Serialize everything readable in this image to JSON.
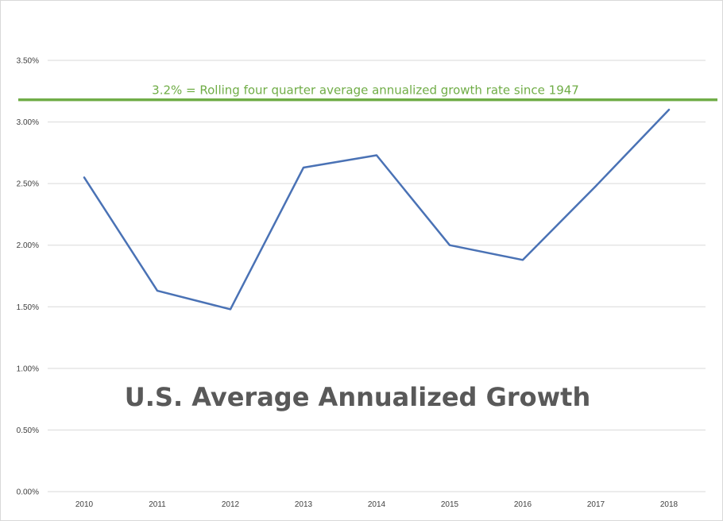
{
  "chart_data": {
    "type": "line",
    "title": "U.S. Average Annualized Growth",
    "xlabel": "",
    "ylabel": "",
    "categories": [
      "2010",
      "2011",
      "2012",
      "2013",
      "2014",
      "2015",
      "2016",
      "2017",
      "2018"
    ],
    "series": [
      {
        "name": "",
        "values": [
          2.55,
          1.63,
          1.48,
          2.63,
          2.73,
          2.0,
          1.88,
          2.48,
          3.1
        ]
      }
    ],
    "ylim": [
      0,
      3.5
    ],
    "yticks": [
      0,
      0.5,
      1.0,
      1.5,
      2.0,
      2.5,
      3.0,
      3.5
    ],
    "ytick_labels": [
      "0.00%",
      "0.50%",
      "1.00%",
      "1.50%",
      "2.00%",
      "2.50%",
      "3.00%",
      "3.50%"
    ],
    "grid": true,
    "reference_line": {
      "value": 3.18,
      "label": "3.2% = Rolling four quarter average annualized growth rate since 1947"
    },
    "colors": {
      "series": "#4a72b5",
      "reference": "#70ad47",
      "grid": "#d9d9d9",
      "title": "#595959"
    }
  }
}
